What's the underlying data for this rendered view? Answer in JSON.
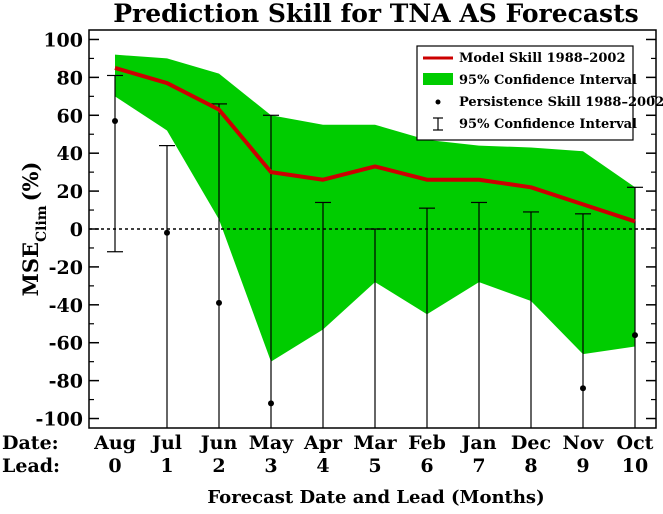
{
  "chart_data": {
    "type": "line",
    "title": "Prediction Skill for TNA AS Forecasts",
    "xlabel": "Forecast Date and Lead (Months)",
    "ylabel_main": "MSE",
    "ylabel_sub": "Clim",
    "ylabel_unit": "(%)",
    "ylim": [
      -105,
      105
    ],
    "yticks": [
      -100,
      -80,
      -60,
      -40,
      -20,
      0,
      20,
      40,
      60,
      80,
      100
    ],
    "date_row_label": "Date:",
    "lead_row_label": "Lead:",
    "categories": [
      "Aug",
      "Jul",
      "Jun",
      "May",
      "Apr",
      "Mar",
      "Feb",
      "Jan",
      "Dec",
      "Nov",
      "Oct"
    ],
    "leads": [
      "0",
      "1",
      "2",
      "3",
      "4",
      "5",
      "6",
      "7",
      "8",
      "9",
      "10"
    ],
    "zero_line": true,
    "legend_position": "top-right",
    "series": [
      {
        "name": "Model Skill 1988–2002",
        "kind": "line",
        "color": "#cc0000",
        "values": [
          85,
          77,
          63,
          30,
          26,
          33,
          26,
          26,
          22,
          13,
          4
        ]
      },
      {
        "name": "95% Confidence Interval",
        "kind": "band",
        "color": "#00cc00",
        "upper": [
          92,
          90,
          82,
          60,
          55,
          55,
          47,
          44,
          43,
          41,
          22
        ],
        "lower": [
          70,
          52,
          5,
          -70,
          -53,
          -28,
          -45,
          -28,
          -38,
          -66,
          -62
        ]
      },
      {
        "name": "Persistence Skill 1988–2002",
        "kind": "points",
        "color": "#000000",
        "values": [
          57,
          -2,
          -39,
          -92,
          null,
          null,
          null,
          null,
          null,
          -84,
          -56
        ]
      },
      {
        "name": "95% Confidence Interval",
        "kind": "errorbar",
        "color": "#000000",
        "upper": [
          81,
          44,
          66,
          60,
          14,
          0,
          11,
          14,
          9,
          8,
          22
        ],
        "lower": [
          -12,
          -105,
          -105,
          -105,
          -105,
          -105,
          -105,
          -105,
          -105,
          -105,
          -105
        ]
      }
    ]
  }
}
